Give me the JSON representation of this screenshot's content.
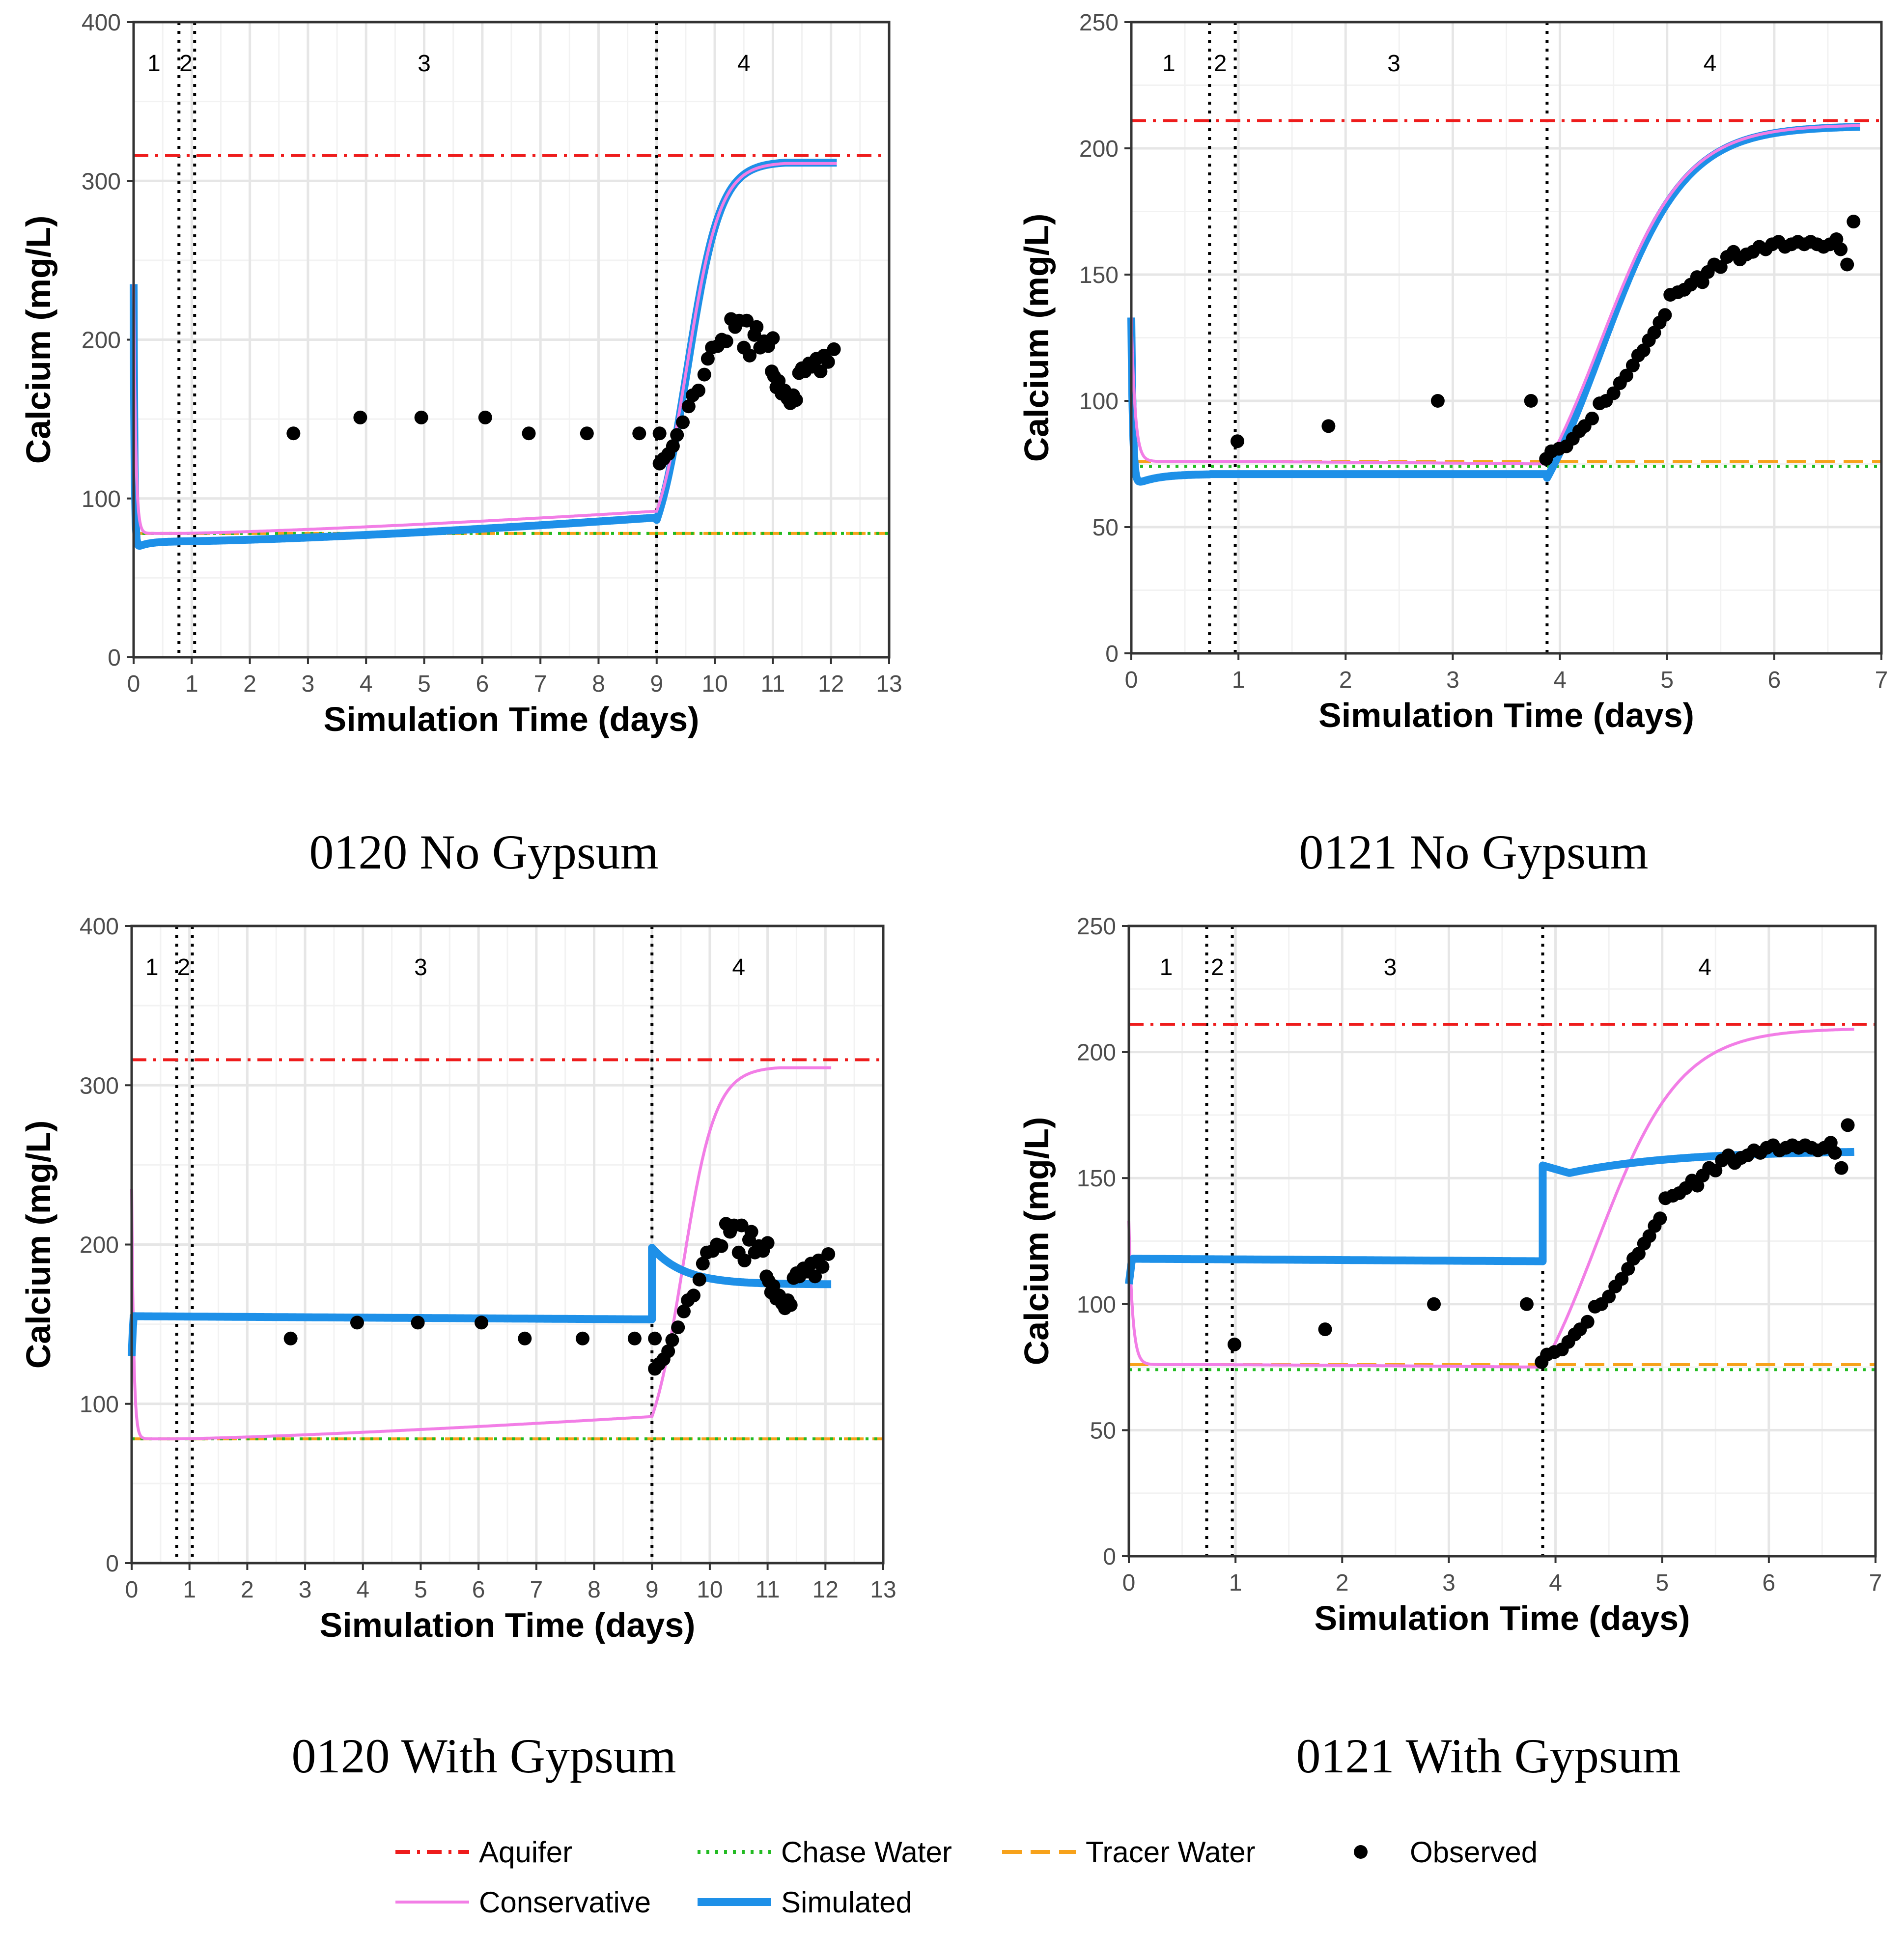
{
  "colors": {
    "aquifer": "#ee1c1c",
    "chase": "#22bb22",
    "tracer": "#f7a21b",
    "conservative": "#f27ee6",
    "simulated": "#1e90e8",
    "observed": "#000000"
  },
  "legend": {
    "aquifer": "Aquifer",
    "chase": "Chase Water",
    "tracer": "Tracer Water",
    "observed": "Observed",
    "conservative": "Conservative",
    "simulated": "Simulated"
  },
  "chart_data": [
    {
      "type": "line",
      "title": "0120 No Gypsum",
      "xlabel": "Simulation Time (days)",
      "ylabel": "Calcium (mg/L)",
      "xlim": [
        0,
        13
      ],
      "ylim": [
        0,
        400
      ],
      "xticks": [
        0,
        1,
        2,
        3,
        4,
        5,
        6,
        7,
        8,
        9,
        10,
        11,
        12,
        13
      ],
      "yticks": [
        0,
        100,
        200,
        300,
        400
      ],
      "grid": true,
      "phase_boundaries": [
        0.78,
        1.05,
        9.0
      ],
      "phase_labels": [
        {
          "x": 0.35,
          "label": "1"
        },
        {
          "x": 0.9,
          "label": "2"
        },
        {
          "x": 5.0,
          "label": "3"
        },
        {
          "x": 10.5,
          "label": "4"
        }
      ],
      "aquifer": 316,
      "tracer": 78,
      "chase": 78,
      "max_time": 12.1,
      "conservative": {
        "start": 235,
        "p2": 78,
        "p3end": 92,
        "final": 311
      },
      "simulated": {
        "start": 235,
        "p2": 73,
        "p3end": 88,
        "final": 313,
        "with_gypsum": false
      },
      "observed": [
        [
          2.75,
          141
        ],
        [
          3.9,
          151
        ],
        [
          4.95,
          151
        ],
        [
          6.05,
          151
        ],
        [
          6.8,
          141
        ],
        [
          7.8,
          141
        ],
        [
          8.7,
          141
        ],
        [
          9.05,
          141
        ],
        [
          9.05,
          122
        ],
        [
          9.12,
          125
        ],
        [
          9.2,
          128
        ],
        [
          9.28,
          133
        ],
        [
          9.35,
          140
        ],
        [
          9.45,
          148
        ],
        [
          9.55,
          158
        ],
        [
          9.62,
          165
        ],
        [
          9.72,
          168
        ],
        [
          9.82,
          178
        ],
        [
          9.88,
          188
        ],
        [
          9.95,
          195
        ],
        [
          10.05,
          196
        ],
        [
          10.12,
          200
        ],
        [
          10.2,
          199
        ],
        [
          10.28,
          213
        ],
        [
          10.35,
          208
        ],
        [
          10.42,
          212
        ],
        [
          10.5,
          195
        ],
        [
          10.55,
          212
        ],
        [
          10.6,
          190
        ],
        [
          10.68,
          203
        ],
        [
          10.72,
          208
        ],
        [
          10.78,
          195
        ],
        [
          10.85,
          199
        ],
        [
          10.92,
          196
        ],
        [
          10.98,
          180
        ],
        [
          11.02,
          177
        ],
        [
          11.06,
          170
        ],
        [
          11.1,
          174
        ],
        [
          11.15,
          166
        ],
        [
          11.2,
          168
        ],
        [
          11.25,
          163
        ],
        [
          11.3,
          160
        ],
        [
          11.35,
          165
        ],
        [
          11.4,
          162
        ],
        [
          11.45,
          179
        ],
        [
          11.5,
          182
        ],
        [
          11.55,
          180
        ],
        [
          11.62,
          185
        ],
        [
          11.68,
          183
        ],
        [
          11.75,
          188
        ],
        [
          11.82,
          180
        ],
        [
          11.88,
          190
        ],
        [
          11.95,
          186
        ],
        [
          12.05,
          194
        ],
        [
          11.0,
          201
        ]
      ]
    },
    {
      "type": "line",
      "title": "0121 No Gypsum",
      "xlabel": "Simulation Time (days)",
      "ylabel": "Calcium (mg/L)",
      "xlim": [
        0,
        7
      ],
      "ylim": [
        0,
        250
      ],
      "xticks": [
        0,
        1,
        2,
        3,
        4,
        5,
        6,
        7
      ],
      "yticks": [
        0,
        50,
        100,
        150,
        200,
        250
      ],
      "grid": true,
      "phase_boundaries": [
        0.73,
        0.97,
        3.88
      ],
      "phase_labels": [
        {
          "x": 0.35,
          "label": "1"
        },
        {
          "x": 0.83,
          "label": "2"
        },
        {
          "x": 2.45,
          "label": "3"
        },
        {
          "x": 5.4,
          "label": "4"
        }
      ],
      "aquifer": 211,
      "tracer": 76,
      "chase": 74,
      "max_time": 6.8,
      "conservative": {
        "start": 133,
        "p2": 76,
        "p3end": 75,
        "final": 209
      },
      "simulated": {
        "start": 133,
        "p2": 71,
        "p3end": 71,
        "final": 210,
        "with_gypsum": false
      },
      "observed": [
        [
          0.99,
          84
        ],
        [
          1.84,
          90
        ],
        [
          2.86,
          100
        ],
        [
          3.73,
          100
        ],
        [
          3.87,
          77
        ],
        [
          3.92,
          80
        ],
        [
          3.99,
          81
        ],
        [
          4.06,
          82
        ],
        [
          4.12,
          85
        ],
        [
          4.18,
          88
        ],
        [
          4.23,
          90
        ],
        [
          4.3,
          93
        ],
        [
          4.37,
          99
        ],
        [
          4.43,
          100
        ],
        [
          4.5,
          103
        ],
        [
          4.56,
          107
        ],
        [
          4.62,
          110
        ],
        [
          4.68,
          114
        ],
        [
          4.73,
          118
        ],
        [
          4.78,
          120
        ],
        [
          4.83,
          124
        ],
        [
          4.88,
          127
        ],
        [
          4.93,
          131
        ],
        [
          4.98,
          134
        ],
        [
          5.03,
          142
        ],
        [
          5.1,
          143
        ],
        [
          5.16,
          144
        ],
        [
          5.22,
          146
        ],
        [
          5.28,
          149
        ],
        [
          5.33,
          147
        ],
        [
          5.38,
          151
        ],
        [
          5.44,
          154
        ],
        [
          5.5,
          153
        ],
        [
          5.56,
          157
        ],
        [
          5.62,
          159
        ],
        [
          5.68,
          156
        ],
        [
          5.74,
          158
        ],
        [
          5.8,
          159
        ],
        [
          5.86,
          161
        ],
        [
          5.92,
          160
        ],
        [
          5.98,
          162
        ],
        [
          6.04,
          163
        ],
        [
          6.1,
          161
        ],
        [
          6.16,
          162
        ],
        [
          6.22,
          163
        ],
        [
          6.28,
          162
        ],
        [
          6.34,
          163
        ],
        [
          6.4,
          162
        ],
        [
          6.46,
          161
        ],
        [
          6.52,
          162
        ],
        [
          6.58,
          164
        ],
        [
          6.62,
          160
        ],
        [
          6.68,
          154
        ],
        [
          6.74,
          171
        ]
      ]
    },
    {
      "type": "line",
      "title": "0120 With Gypsum",
      "xlabel": "Simulation Time (days)",
      "ylabel": "Calcium (mg/L)",
      "xlim": [
        0,
        13
      ],
      "ylim": [
        0,
        400
      ],
      "xticks": [
        0,
        1,
        2,
        3,
        4,
        5,
        6,
        7,
        8,
        9,
        10,
        11,
        12,
        13
      ],
      "yticks": [
        0,
        100,
        200,
        300,
        400
      ],
      "grid": true,
      "phase_boundaries": [
        0.78,
        1.05,
        9.0
      ],
      "phase_labels": [
        {
          "x": 0.35,
          "label": "1"
        },
        {
          "x": 0.9,
          "label": "2"
        },
        {
          "x": 5.0,
          "label": "3"
        },
        {
          "x": 10.5,
          "label": "4"
        }
      ],
      "aquifer": 316,
      "tracer": 78,
      "chase": 78,
      "max_time": 12.1,
      "conservative": {
        "start": 235,
        "p2": 78,
        "p3end": 92,
        "final": 311
      },
      "simulated": {
        "start": 130,
        "p2": 155,
        "p3end": 153,
        "jump": 198,
        "final": 175,
        "with_gypsum": true
      },
      "observed": [
        [
          2.75,
          141
        ],
        [
          3.9,
          151
        ],
        [
          4.95,
          151
        ],
        [
          6.05,
          151
        ],
        [
          6.8,
          141
        ],
        [
          7.8,
          141
        ],
        [
          8.7,
          141
        ],
        [
          9.05,
          141
        ],
        [
          9.05,
          122
        ],
        [
          9.12,
          125
        ],
        [
          9.2,
          128
        ],
        [
          9.28,
          133
        ],
        [
          9.35,
          140
        ],
        [
          9.45,
          148
        ],
        [
          9.55,
          158
        ],
        [
          9.62,
          165
        ],
        [
          9.72,
          168
        ],
        [
          9.82,
          178
        ],
        [
          9.88,
          188
        ],
        [
          9.95,
          195
        ],
        [
          10.05,
          196
        ],
        [
          10.12,
          200
        ],
        [
          10.2,
          199
        ],
        [
          10.28,
          213
        ],
        [
          10.35,
          208
        ],
        [
          10.42,
          212
        ],
        [
          10.5,
          195
        ],
        [
          10.55,
          212
        ],
        [
          10.6,
          190
        ],
        [
          10.68,
          203
        ],
        [
          10.72,
          208
        ],
        [
          10.78,
          195
        ],
        [
          10.85,
          199
        ],
        [
          10.92,
          196
        ],
        [
          10.98,
          180
        ],
        [
          11.02,
          177
        ],
        [
          11.06,
          170
        ],
        [
          11.1,
          174
        ],
        [
          11.15,
          166
        ],
        [
          11.2,
          168
        ],
        [
          11.25,
          163
        ],
        [
          11.3,
          160
        ],
        [
          11.35,
          165
        ],
        [
          11.4,
          162
        ],
        [
          11.45,
          179
        ],
        [
          11.5,
          182
        ],
        [
          11.55,
          180
        ],
        [
          11.62,
          185
        ],
        [
          11.68,
          183
        ],
        [
          11.75,
          188
        ],
        [
          11.82,
          180
        ],
        [
          11.88,
          190
        ],
        [
          11.95,
          186
        ],
        [
          12.05,
          194
        ],
        [
          11.0,
          201
        ]
      ]
    },
    {
      "type": "line",
      "title": "0121 With Gypsum",
      "xlabel": "Simulation Time (days)",
      "ylabel": "Calcium (mg/L)",
      "xlim": [
        0,
        7
      ],
      "ylim": [
        0,
        250
      ],
      "xticks": [
        0,
        1,
        2,
        3,
        4,
        5,
        6,
        7
      ],
      "yticks": [
        0,
        50,
        100,
        150,
        200,
        250
      ],
      "grid": true,
      "phase_boundaries": [
        0.73,
        0.97,
        3.88
      ],
      "phase_labels": [
        {
          "x": 0.35,
          "label": "1"
        },
        {
          "x": 0.83,
          "label": "2"
        },
        {
          "x": 2.45,
          "label": "3"
        },
        {
          "x": 5.4,
          "label": "4"
        }
      ],
      "aquifer": 211,
      "tracer": 76,
      "chase": 74,
      "max_time": 6.8,
      "conservative": {
        "start": 133,
        "p2": 76,
        "p3end": 75,
        "final": 209
      },
      "simulated": {
        "start": 108,
        "p2": 118,
        "p3end": 117,
        "jump": 155,
        "final": 161,
        "with_gypsum": true
      },
      "observed": [
        [
          0.99,
          84
        ],
        [
          1.84,
          90
        ],
        [
          2.86,
          100
        ],
        [
          3.73,
          100
        ],
        [
          3.87,
          77
        ],
        [
          3.92,
          80
        ],
        [
          3.99,
          81
        ],
        [
          4.06,
          82
        ],
        [
          4.12,
          85
        ],
        [
          4.18,
          88
        ],
        [
          4.23,
          90
        ],
        [
          4.3,
          93
        ],
        [
          4.37,
          99
        ],
        [
          4.43,
          100
        ],
        [
          4.5,
          103
        ],
        [
          4.56,
          107
        ],
        [
          4.62,
          110
        ],
        [
          4.68,
          114
        ],
        [
          4.73,
          118
        ],
        [
          4.78,
          120
        ],
        [
          4.83,
          124
        ],
        [
          4.88,
          127
        ],
        [
          4.93,
          131
        ],
        [
          4.98,
          134
        ],
        [
          5.03,
          142
        ],
        [
          5.1,
          143
        ],
        [
          5.16,
          144
        ],
        [
          5.22,
          146
        ],
        [
          5.28,
          149
        ],
        [
          5.33,
          147
        ],
        [
          5.38,
          151
        ],
        [
          5.44,
          154
        ],
        [
          5.5,
          153
        ],
        [
          5.56,
          157
        ],
        [
          5.62,
          159
        ],
        [
          5.68,
          156
        ],
        [
          5.74,
          158
        ],
        [
          5.8,
          159
        ],
        [
          5.86,
          161
        ],
        [
          5.92,
          160
        ],
        [
          5.98,
          162
        ],
        [
          6.04,
          163
        ],
        [
          6.1,
          161
        ],
        [
          6.16,
          162
        ],
        [
          6.22,
          163
        ],
        [
          6.28,
          162
        ],
        [
          6.34,
          163
        ],
        [
          6.4,
          162
        ],
        [
          6.46,
          161
        ],
        [
          6.52,
          162
        ],
        [
          6.58,
          164
        ],
        [
          6.62,
          160
        ],
        [
          6.68,
          154
        ],
        [
          6.74,
          171
        ]
      ]
    }
  ]
}
